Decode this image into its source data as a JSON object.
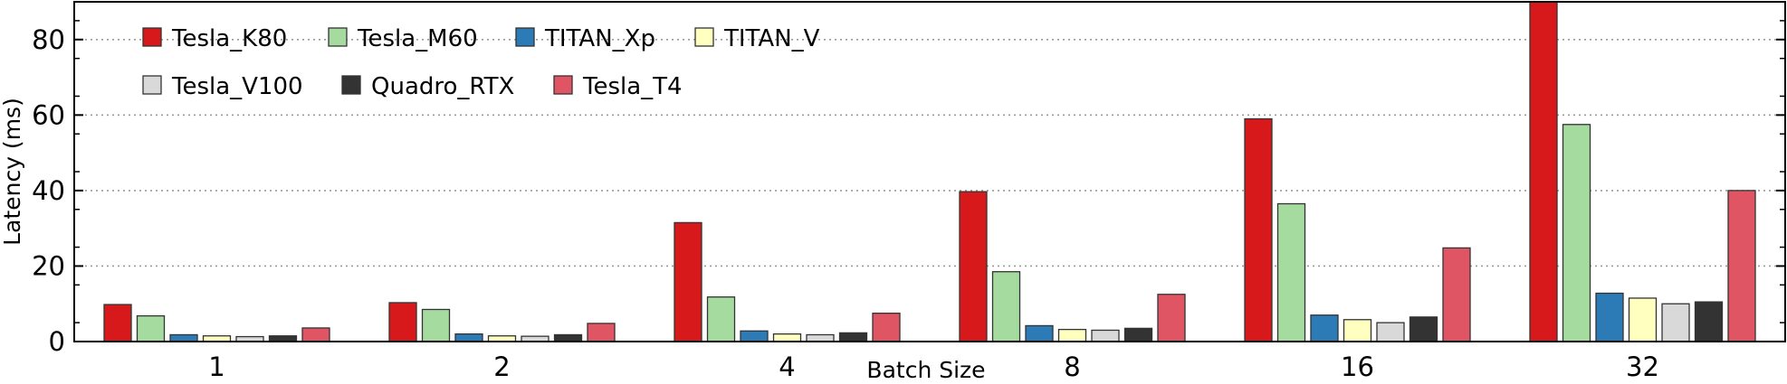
{
  "chart_data": {
    "type": "bar",
    "xlabel": "Batch Size",
    "ylabel": "Latency (ms)",
    "categories": [
      "1",
      "2",
      "4",
      "8",
      "16",
      "32"
    ],
    "ylim": [
      0,
      90
    ],
    "yticks": [
      0,
      20,
      40,
      60,
      80
    ],
    "grid": true,
    "legend_position": "top-left",
    "series": [
      {
        "name": "Tesla_K80",
        "color": "#d7191c",
        "values": [
          9.8,
          10.3,
          31.5,
          39.7,
          59.0,
          90.5
        ]
      },
      {
        "name": "Tesla_M60",
        "color": "#a6dba0",
        "values": [
          6.8,
          8.5,
          11.8,
          18.5,
          36.5,
          57.5
        ]
      },
      {
        "name": "TITAN_Xp",
        "color": "#2c7bb6",
        "values": [
          1.8,
          2.0,
          2.8,
          4.2,
          7.0,
          12.8
        ]
      },
      {
        "name": "TITAN_V",
        "color": "#ffffbf",
        "values": [
          1.5,
          1.5,
          2.0,
          3.2,
          5.8,
          11.5
        ]
      },
      {
        "name": "Tesla_V100",
        "color": "#d9d9d9",
        "values": [
          1.3,
          1.4,
          1.8,
          3.0,
          5.0,
          10.0
        ]
      },
      {
        "name": "Quadro_RTX",
        "color": "#333333",
        "values": [
          1.5,
          1.8,
          2.3,
          3.5,
          6.5,
          10.5
        ]
      },
      {
        "name": "Tesla_T4",
        "color": "#e05563",
        "values": [
          3.6,
          4.8,
          7.5,
          12.5,
          24.8,
          40.0
        ]
      }
    ]
  }
}
